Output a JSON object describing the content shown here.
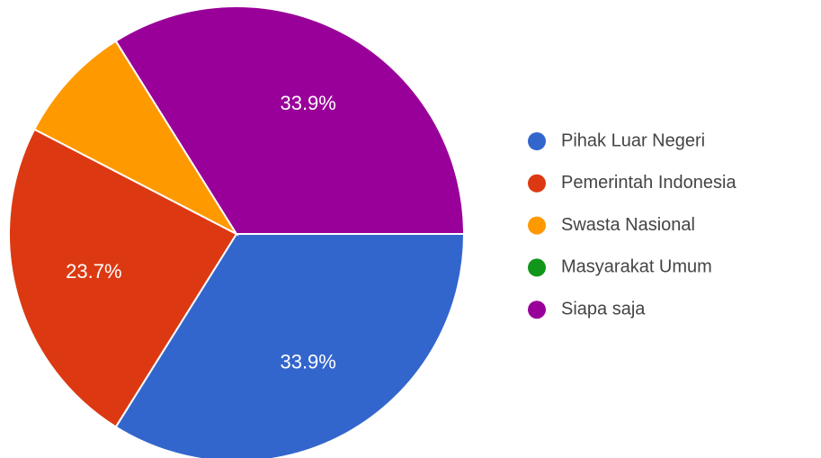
{
  "chart_data": {
    "type": "pie",
    "categories": [
      "Pihak Luar Negeri",
      "Pemerintah Indonesia",
      "Swasta Nasional",
      "Masyarakat Umum",
      "Siapa saja"
    ],
    "values": [
      33.9,
      23.7,
      8.5,
      0,
      33.9
    ],
    "value_labels": [
      "33.9%",
      "23.7%",
      null,
      null,
      "33.9%"
    ],
    "colors": [
      "#3366cc",
      "#dc3912",
      "#ff9900",
      "#109618",
      "#990099"
    ],
    "legend": "right"
  }
}
